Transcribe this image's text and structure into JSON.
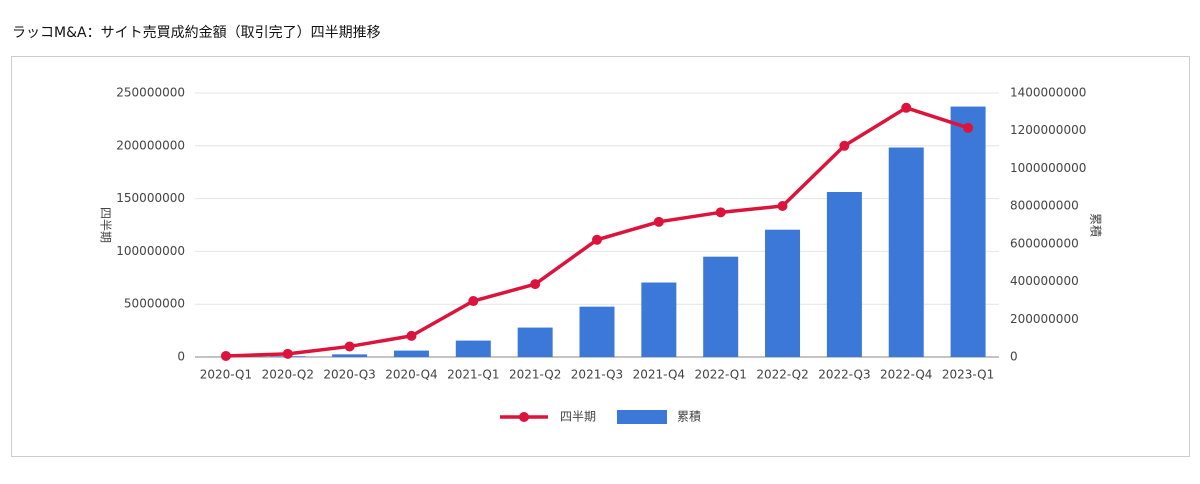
{
  "chart_data": {
    "type": "combo",
    "title": "ラッコM&A：サイト売買成約金額（取引完了）四半期推移",
    "ylabel": "四半期",
    "y2label": "累積",
    "categories": [
      "2020-Q1",
      "2020-Q2",
      "2020-Q3",
      "2020-Q4",
      "2021-Q1",
      "2021-Q2",
      "2021-Q3",
      "2021-Q4",
      "2022-Q1",
      "2022-Q2",
      "2022-Q3",
      "2022-Q4",
      "2023-Q1"
    ],
    "series": [
      {
        "name": "四半期",
        "type": "line",
        "color": "#dc143c",
        "values": [
          1000000,
          3000000,
          10000000,
          20000000,
          53000000,
          69000000,
          111000000,
          128000000,
          137000000,
          143000000,
          200000000,
          236000000,
          217000000
        ]
      },
      {
        "name": "累積",
        "type": "bar",
        "axis": "y2",
        "color": "#3c78d8",
        "values": [
          1000000,
          4000000,
          14000000,
          34000000,
          87000000,
          156000000,
          267000000,
          395000000,
          532000000,
          675000000,
          875000000,
          1111000000,
          1328000000
        ]
      }
    ],
    "ylim": [
      0,
      250000000
    ],
    "yticks": [
      0,
      50000000,
      100000000,
      150000000,
      200000000,
      250000000
    ],
    "y2lim": [
      0,
      1400000000
    ],
    "y2ticks": [
      0,
      200000000,
      400000000,
      600000000,
      800000000,
      1000000000,
      1200000000,
      1400000000
    ],
    "grid": true,
    "legend": "bottom"
  }
}
